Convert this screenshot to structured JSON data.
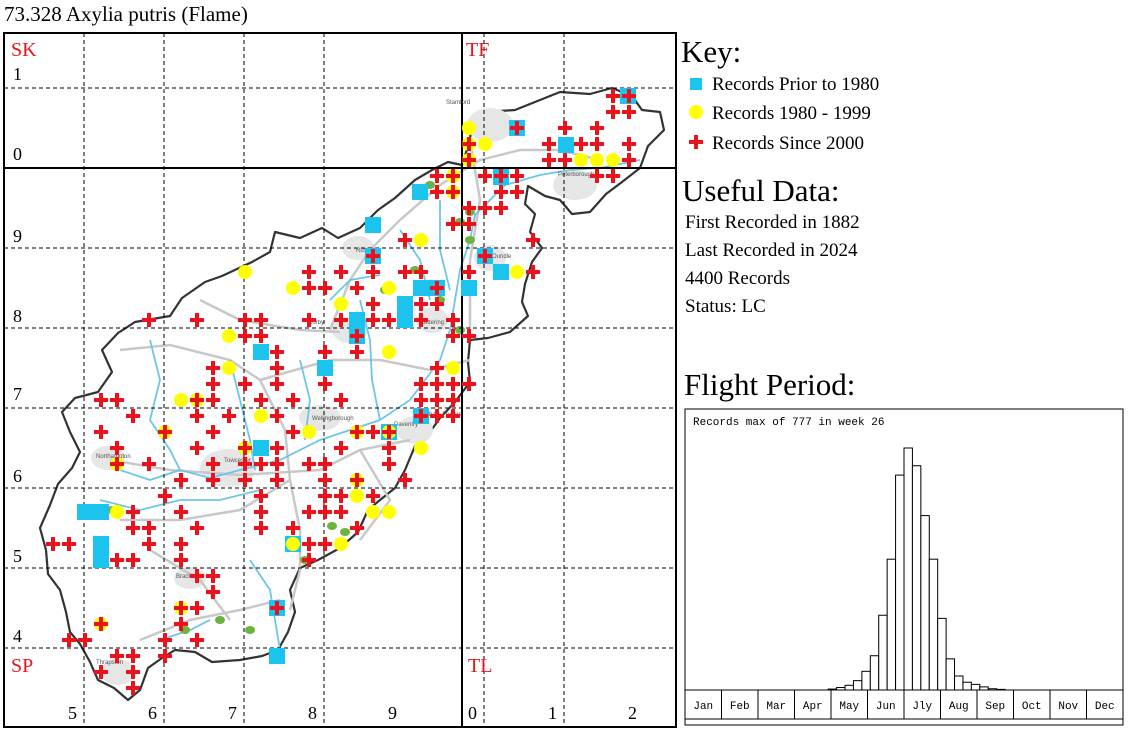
{
  "title": "73.328 Axylia putris (Flame)",
  "map": {
    "square_labels": [
      "SK",
      "TF",
      "SP",
      "TL"
    ],
    "easting_labels": [
      "5",
      "6",
      "7",
      "8",
      "9",
      "0",
      "1",
      "2"
    ],
    "northing_labels": [
      "1",
      "0",
      "9",
      "8",
      "7",
      "6",
      "5",
      "4"
    ],
    "colors": {
      "prior_1980": "#1BC3EE",
      "r1980_1999": "#FFFF00",
      "since_2000": "#E8141C",
      "boundary": "#333333",
      "rivers": "#6EC6E6",
      "roads": "#C8C8C8",
      "woodland": "#6DB33F",
      "label_red": "#E8141C"
    },
    "towns_visible": [
      "Stamford",
      "Peterborough",
      "Corby",
      "Kettering",
      "Wellingborough",
      "Daventry",
      "Northampton",
      "Towcester",
      "Brackley",
      "Thrapston",
      "Oundle",
      "Rushden",
      "Higham Ferrers"
    ]
  },
  "key": {
    "title": "Key:",
    "items": [
      {
        "label": "Records Prior to 1980",
        "symbol": "blue-square-icon"
      },
      {
        "label": "Records 1980 - 1999",
        "symbol": "yellow-circle-icon"
      },
      {
        "label": "Records Since 2000",
        "symbol": "red-cross-icon"
      }
    ]
  },
  "useful": {
    "title": "Useful Data:",
    "first": "First Recorded in 1882",
    "last": "Last Recorded in 2024",
    "records": "4400 Records",
    "status": "Status: LC"
  },
  "flight": {
    "title": "Flight Period:",
    "caption": "Records max of 777 in week 26",
    "months": [
      "Jan",
      "Feb",
      "Mar",
      "Apr",
      "May",
      "Jun",
      "Jly",
      "Aug",
      "Sep",
      "Oct",
      "Nov",
      "Dec"
    ]
  },
  "chart_data": {
    "type": "bar",
    "title": "Records max of 777 in week 26",
    "xlabel": "",
    "ylabel": "",
    "categories": [
      "Jan",
      "Feb",
      "Mar",
      "Apr",
      "May",
      "Jun",
      "Jly",
      "Aug",
      "Sep",
      "Oct",
      "Nov",
      "Dec"
    ],
    "weekly_records": [
      0,
      0,
      0,
      0,
      0,
      0,
      0,
      0,
      0,
      0,
      0,
      0,
      0,
      0,
      0,
      0,
      0,
      3,
      8,
      15,
      30,
      60,
      110,
      240,
      420,
      690,
      777,
      720,
      560,
      420,
      230,
      100,
      45,
      25,
      18,
      10,
      4,
      2,
      0,
      0,
      0,
      0,
      0,
      0,
      0,
      0,
      0,
      0,
      0,
      0,
      0,
      0
    ],
    "ylim": [
      0,
      777
    ]
  }
}
